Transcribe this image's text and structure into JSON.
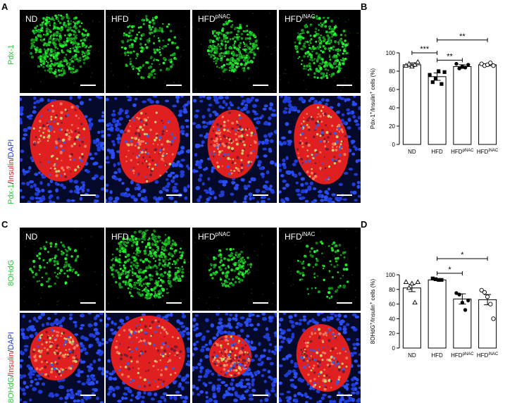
{
  "figure": {
    "panels": {
      "A": "A",
      "B": "B",
      "C": "C",
      "D": "D"
    },
    "group_labels": [
      {
        "main": "ND",
        "sup": ""
      },
      {
        "main": "HFD",
        "sup": ""
      },
      {
        "main": "HFD",
        "sup": "pNAC"
      },
      {
        "main": "HFD",
        "sup": "iNAC"
      }
    ],
    "row_labels": {
      "A_top": "Pdx-1",
      "A_bottom": {
        "p1": "Pdx-1",
        "s1": "/",
        "p2": "Insulin",
        "s2": "/",
        "p3": "DAPI"
      },
      "C_top": "8OHdG",
      "C_bottom": {
        "p1": "8OHdG",
        "s1": "/",
        "p2": "Insulin",
        "s2": "/",
        "p3": "DAPI"
      }
    },
    "colors": {
      "green": "#27c43a",
      "red": "#e02020",
      "blue": "#1f3bd6",
      "black": "#000000"
    }
  },
  "chart_data": [
    {
      "type": "bar",
      "panel": "B",
      "ylabel": {
        "main": "Pdx-1",
        "sup1": "+",
        "mid": "/Insulin",
        "sup2": "+",
        "tail": " cells (%)"
      },
      "ylim": [
        0,
        100
      ],
      "yticks": [
        0,
        20,
        40,
        60,
        80,
        100
      ],
      "categories": [
        {
          "main": "ND",
          "sup": ""
        },
        {
          "main": "HFD",
          "sup": ""
        },
        {
          "main": "HFD",
          "sup": "pNAC"
        },
        {
          "main": "HFD",
          "sup": "iNAC"
        }
      ],
      "values": [
        87,
        74,
        85,
        87
      ],
      "errors": [
        2,
        4,
        2,
        1
      ],
      "markers": [
        "open-triangle",
        "filled-square",
        "filled-circle",
        "open-circle"
      ],
      "points": [
        [
          86,
          88,
          85,
          87,
          90
        ],
        [
          76,
          68,
          72,
          80,
          66,
          79
        ],
        [
          88,
          83,
          85,
          84,
          87
        ],
        [
          88,
          86,
          87,
          89,
          86
        ]
      ],
      "significance": [
        {
          "from": 0,
          "to": 1,
          "level": 100,
          "label": "***"
        },
        {
          "from": 1,
          "to": 2,
          "level": 92,
          "label": "**"
        },
        {
          "from": 1,
          "to": 3,
          "level": 114,
          "label": "**"
        }
      ]
    },
    {
      "type": "bar",
      "panel": "D",
      "ylabel": {
        "main": "8OHdG",
        "sup1": "+",
        "mid": "/Insulin",
        "sup2": "+",
        "tail": " cells (%)"
      },
      "ylim": [
        0,
        100
      ],
      "yticks": [
        0,
        20,
        40,
        60,
        80,
        100
      ],
      "categories": [
        {
          "main": "ND",
          "sup": ""
        },
        {
          "main": "HFD",
          "sup": ""
        },
        {
          "main": "HFD",
          "sup": "pNAC"
        },
        {
          "main": "HFD",
          "sup": "iNAC"
        }
      ],
      "values": [
        82,
        93,
        67,
        66
      ],
      "errors": [
        5,
        1,
        7,
        7
      ],
      "markers": [
        "open-triangle",
        "filled-square",
        "filled-circle",
        "open-circle"
      ],
      "points": [
        [
          90,
          82,
          88,
          62,
          90
        ],
        [
          95,
          94,
          93,
          93
        ],
        [
          75,
          73,
          62,
          52,
          65
        ],
        [
          79,
          76,
          70,
          60,
          40
        ]
      ],
      "significance": [
        {
          "from": 1,
          "to": 2,
          "level": 102,
          "label": "*"
        },
        {
          "from": 1,
          "to": 3,
          "level": 122,
          "label": "*"
        }
      ]
    }
  ]
}
